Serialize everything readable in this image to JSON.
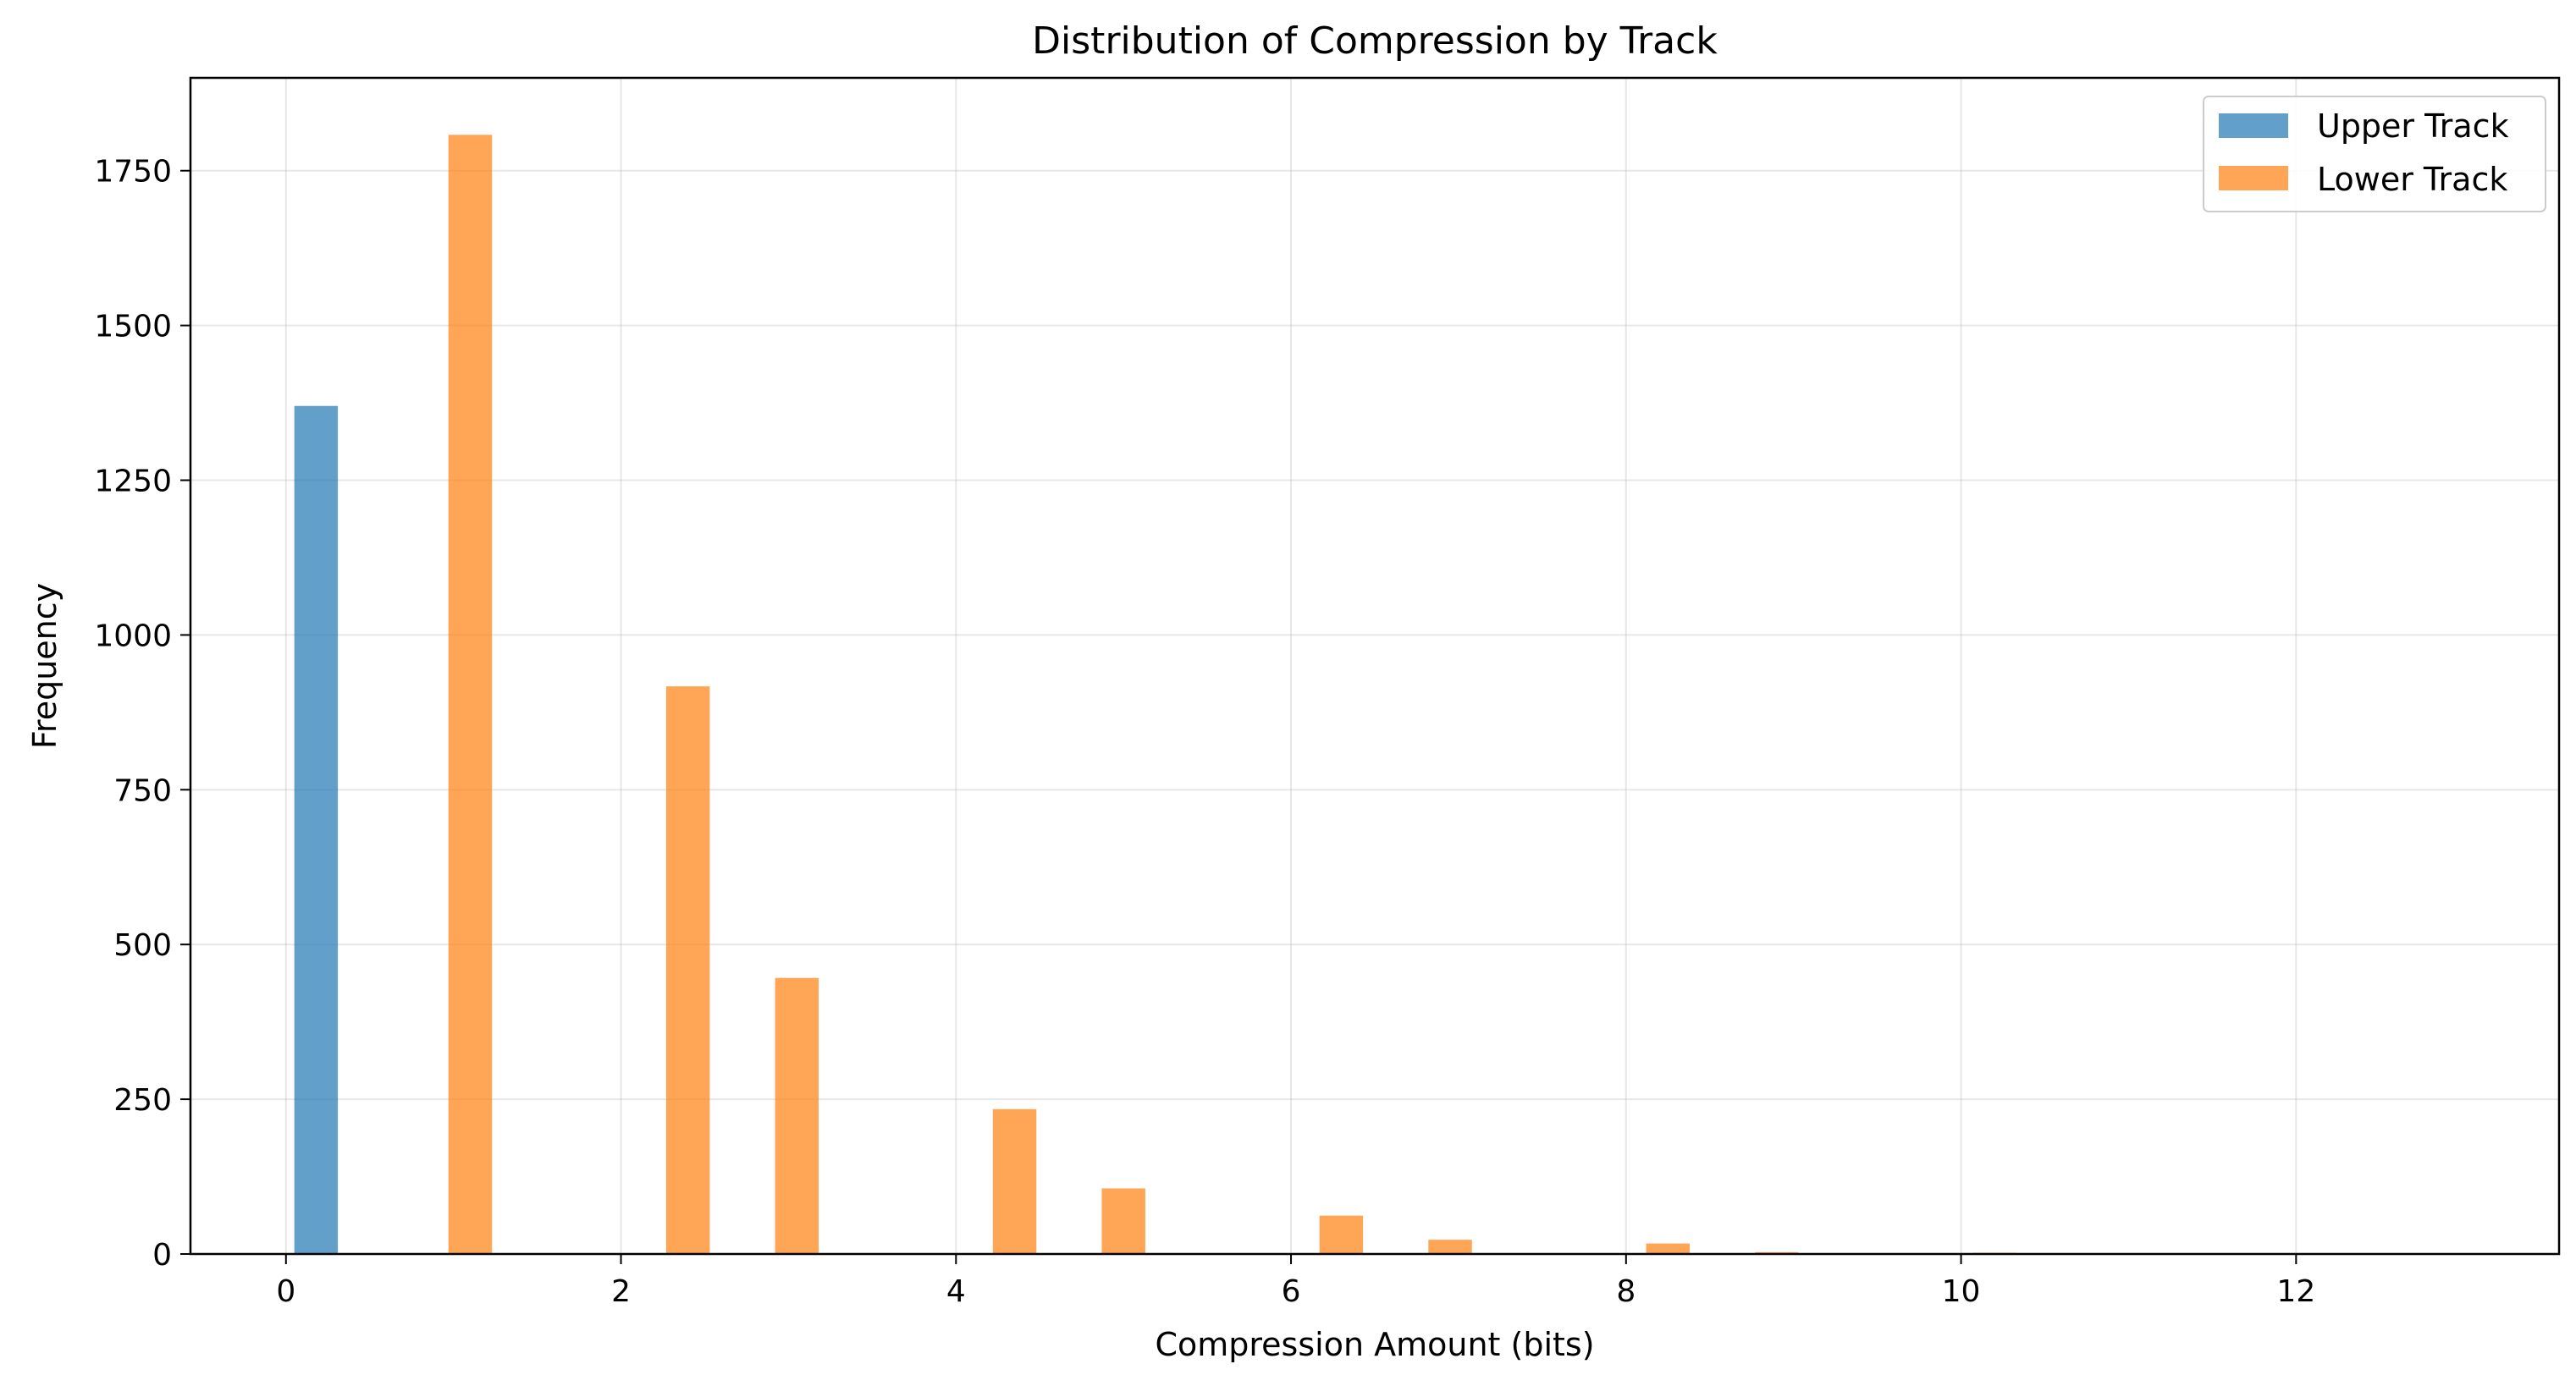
{
  "chart_data": {
    "type": "bar",
    "title": "Distribution of Compression by Track",
    "xlabel": "Compression Amount (bits)",
    "ylabel": "Frequency",
    "xlim": [
      -0.57,
      13.57
    ],
    "ylim": [
      0,
      1900
    ],
    "xticks": [
      0,
      2,
      4,
      6,
      8,
      10,
      12
    ],
    "yticks": [
      0,
      250,
      500,
      750,
      1000,
      1250,
      1500,
      1750
    ],
    "grid": true,
    "legend_position": "top-right",
    "bin_width": 0.26,
    "series": [
      {
        "name": "Upper Track",
        "color": "#1f77b4",
        "bins": [
          {
            "x_start": 0.05,
            "value": 1370
          }
        ]
      },
      {
        "name": "Lower Track",
        "color": "#ff7f0e",
        "bins": [
          {
            "x_start": 0.97,
            "value": 1808
          },
          {
            "x_start": 2.27,
            "value": 917
          },
          {
            "x_start": 2.92,
            "value": 446
          },
          {
            "x_start": 4.22,
            "value": 234
          },
          {
            "x_start": 4.87,
            "value": 106
          },
          {
            "x_start": 6.17,
            "value": 62
          },
          {
            "x_start": 6.82,
            "value": 23
          },
          {
            "x_start": 8.12,
            "value": 17
          },
          {
            "x_start": 8.77,
            "value": 3
          },
          {
            "x_start": 10.07,
            "value": 2
          }
        ]
      }
    ]
  }
}
